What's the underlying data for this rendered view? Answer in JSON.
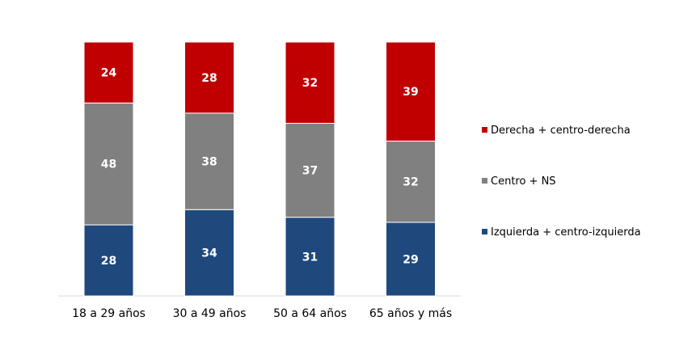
{
  "chart_data": {
    "type": "bar",
    "stacked": true,
    "percent_stacked": true,
    "categories": [
      "18 a 29 años",
      "30 a 49 años",
      "50 a 64 años",
      "65 años y más"
    ],
    "series": [
      {
        "name": "Izquierda + centro-izquierda",
        "values": [
          28,
          34,
          31,
          29
        ],
        "color": "#1f497d"
      },
      {
        "name": "Centro + NS",
        "values": [
          48,
          38,
          37,
          32
        ],
        "color": "#808080"
      },
      {
        "name": "Derecha + centro-derecha",
        "values": [
          24,
          28,
          32,
          39
        ],
        "color": "#c00000"
      }
    ],
    "legend_placement": "right",
    "legend_order": [
      "Derecha + centro-derecha",
      "Centro + NS",
      "Izquierda + centro-izquierda"
    ],
    "grid": false,
    "ylim": [
      0,
      100
    ]
  }
}
